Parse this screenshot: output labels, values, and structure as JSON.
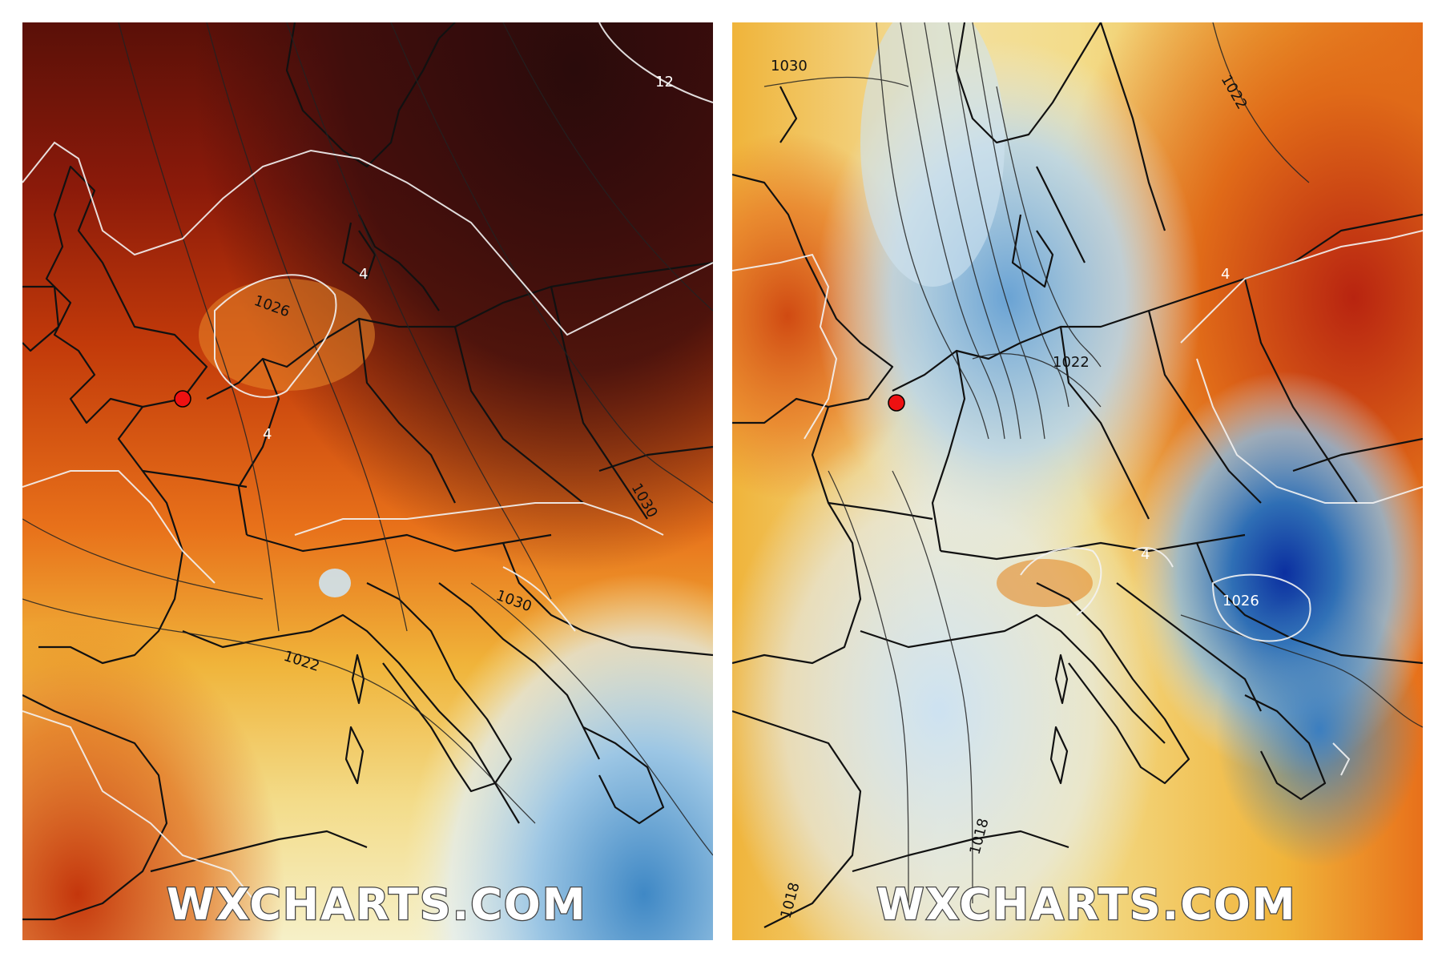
{
  "watermark": "WXCHARTS.COM",
  "marker_color": "#ee1111",
  "panels": [
    {
      "id": "left",
      "description_colors": [
        "#3a0d0d",
        "#8b1a0a",
        "#c23a0a",
        "#e8711a",
        "#f0b43a",
        "#f3dc8a",
        "#f6f0c8",
        "#cfe3f0",
        "#3f88c5"
      ],
      "isobar_labels": [
        "1026",
        "1022",
        "1030",
        "1030",
        "4",
        "4",
        "12"
      ]
    },
    {
      "id": "right",
      "description_colors": [
        "#c02a10",
        "#e8701a",
        "#f0b43a",
        "#f3dc8a",
        "#f6f0c8",
        "#d5e6f2",
        "#7fb3dc",
        "#2f6fb5",
        "#0b2fa0"
      ],
      "isobar_labels": [
        "1030",
        "1022",
        "1022",
        "1026",
        "1018",
        "1018",
        "4",
        "4"
      ]
    }
  ]
}
